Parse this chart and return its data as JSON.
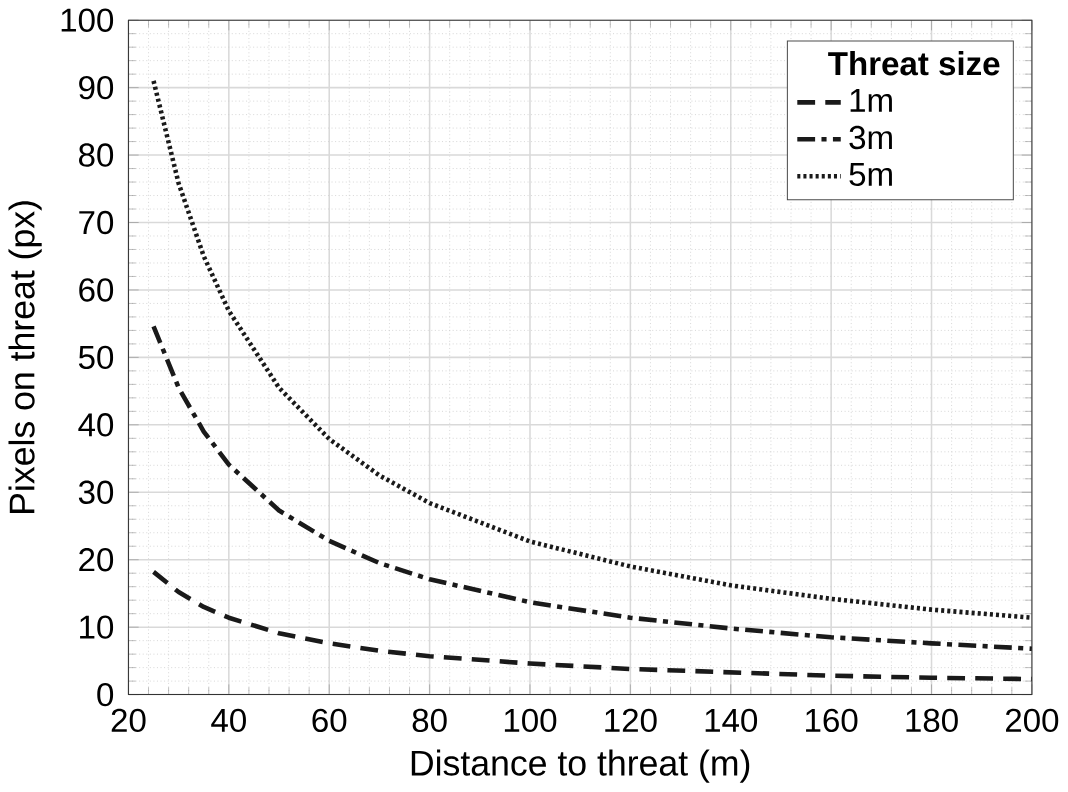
{
  "chart_data": {
    "type": "line",
    "xlabel": "Distance to threat (m)",
    "ylabel": "Pixels on threat (px)",
    "legend_title": "Threat size",
    "xlim": [
      20,
      200
    ],
    "xticks": [
      20,
      40,
      60,
      80,
      100,
      120,
      140,
      160,
      180,
      200
    ],
    "ylim": [
      0,
      100
    ],
    "yticks": [
      0,
      10,
      20,
      30,
      40,
      50,
      60,
      70,
      80,
      90,
      100
    ],
    "grid": true,
    "legend": "top right",
    "marker": "none",
    "series": [
      {
        "name": "1m",
        "color": "#1a1a1a",
        "line_style": "dashed",
        "x": [
          25,
          30,
          35,
          40,
          50,
          60,
          70,
          80,
          100,
          120,
          140,
          160,
          180,
          200
        ],
        "values": [
          18.2,
          15.2,
          13,
          11.4,
          9.1,
          7.6,
          6.5,
          5.7,
          4.6,
          3.8,
          3.3,
          2.8,
          2.5,
          2.3
        ]
      },
      {
        "name": "3m",
        "color": "#1a1a1a",
        "line_style": "dashdot",
        "x": [
          25,
          30,
          35,
          40,
          50,
          60,
          70,
          80,
          100,
          120,
          140,
          160,
          180,
          200
        ],
        "values": [
          54.6,
          45.5,
          39,
          34.1,
          27.3,
          22.8,
          19.5,
          17.1,
          13.7,
          11.4,
          9.8,
          8.5,
          7.6,
          6.8
        ]
      },
      {
        "name": "5m",
        "color": "#1a1a1a",
        "line_style": "dotted",
        "x": [
          25,
          30,
          35,
          40,
          50,
          60,
          70,
          80,
          100,
          120,
          140,
          160,
          180,
          200
        ],
        "values": [
          91,
          75.8,
          65,
          56.9,
          45.5,
          37.9,
          32.5,
          28.4,
          22.7,
          19,
          16.2,
          14.2,
          12.6,
          11.4
        ]
      }
    ]
  }
}
